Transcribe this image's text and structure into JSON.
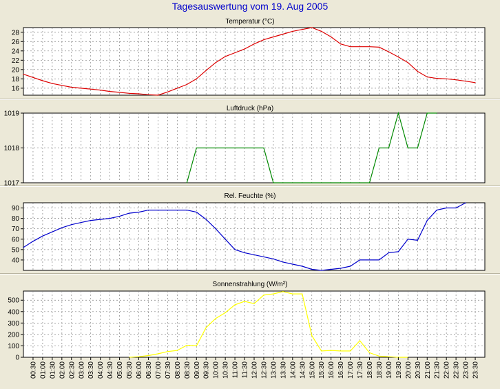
{
  "page": {
    "title": "Tagesauswertung vom 19. Aug 2005",
    "title_color": "#0000cc",
    "background": "#ece9d8",
    "plot_background": "#ffffff"
  },
  "chart_data": [
    {
      "type": "line",
      "title": "Temperatur (°C)",
      "color": "#dd0000",
      "ylim": [
        14.5,
        29
      ],
      "yticks": [
        16,
        18,
        20,
        22,
        24,
        26,
        28
      ],
      "x": [
        0,
        0.5,
        1,
        1.5,
        2,
        2.5,
        3,
        3.5,
        4,
        4.5,
        5,
        5.5,
        6,
        6.5,
        7,
        7.5,
        8,
        8.5,
        9,
        9.5,
        10,
        10.5,
        11,
        11.5,
        12,
        12.5,
        13,
        13.5,
        14,
        14.5,
        15,
        15.5,
        16,
        16.5,
        17,
        17.5,
        18,
        18.5,
        19,
        19.5,
        20,
        20.5,
        21,
        21.5,
        22,
        22.5,
        23,
        23.5
      ],
      "values": [
        19,
        18.3,
        17.6,
        17,
        16.6,
        16.2,
        16,
        15.8,
        15.6,
        15.3,
        15.1,
        14.9,
        14.8,
        14.6,
        14.5,
        15.2,
        16,
        16.8,
        18,
        19.8,
        21.5,
        22.8,
        23.6,
        24.4,
        25.5,
        26.4,
        27,
        27.6,
        28.2,
        28.6,
        29,
        28.2,
        27,
        25.5,
        24.9,
        24.9,
        24.9,
        24.8,
        23.8,
        22.7,
        21.5,
        19.6,
        18.4,
        18.1,
        18,
        17.8,
        17.5,
        17.2
      ]
    },
    {
      "type": "line",
      "title": "Luftdruck (hPa)",
      "color": "#008800",
      "ylim": [
        1017,
        1019
      ],
      "yticks": [
        1017,
        1018,
        1019
      ],
      "x": [
        8.5,
        9,
        9.5,
        10,
        10.5,
        11,
        11.5,
        12,
        12.5,
        13,
        13.5,
        18,
        18.5,
        19,
        19.5,
        20,
        20.5,
        21,
        21.5
      ],
      "values": [
        1017,
        1018,
        1018,
        1018,
        1018,
        1018,
        1018,
        1018,
        1018,
        1017,
        1017,
        1017,
        1018,
        1018,
        1019,
        1018,
        1018,
        1019,
        1019
      ]
    },
    {
      "type": "line",
      "title": "Rel. Feuchte (%)",
      "color": "#0000cc",
      "ylim": [
        30,
        95
      ],
      "yticks": [
        40,
        50,
        60,
        70,
        80,
        90
      ],
      "x": [
        0,
        0.5,
        1,
        1.5,
        2,
        2.5,
        3,
        3.5,
        4,
        4.5,
        5,
        5.5,
        6,
        6.5,
        7,
        7.5,
        8,
        8.5,
        9,
        9.5,
        10,
        10.5,
        11,
        11.5,
        12,
        12.5,
        13,
        13.5,
        14,
        14.5,
        15,
        15.5,
        16,
        16.5,
        17,
        17.5,
        18,
        18.5,
        19,
        19.5,
        20,
        20.5,
        21,
        21.5,
        22,
        22.5,
        23
      ],
      "values": [
        52,
        58,
        63,
        67,
        71,
        74,
        76,
        78,
        79,
        80,
        82,
        85,
        86,
        88,
        88,
        88,
        88,
        88,
        86,
        79,
        70,
        60,
        50,
        47,
        45,
        43,
        41,
        38,
        36,
        34,
        31,
        30,
        31,
        32,
        34,
        40,
        40,
        40,
        47,
        48,
        60,
        59,
        78,
        88,
        90,
        90,
        95
      ]
    },
    {
      "type": "line",
      "title": "Sonnenstrahlung (W/m²)",
      "color": "#ffff00",
      "ylim": [
        0,
        580
      ],
      "yticks": [
        0,
        100,
        200,
        300,
        400,
        500
      ],
      "x": [
        5.5,
        6,
        6.5,
        7,
        7.5,
        8,
        8.5,
        9,
        9.5,
        10,
        10.5,
        11,
        11.5,
        12,
        12.5,
        13,
        13.5,
        14,
        14.5,
        15,
        15.5,
        16,
        16.5,
        17,
        17.5,
        18,
        18.5,
        19,
        19.5,
        20
      ],
      "values": [
        0,
        5,
        15,
        30,
        50,
        60,
        105,
        100,
        260,
        340,
        390,
        460,
        490,
        470,
        545,
        555,
        575,
        555,
        555,
        190,
        55,
        60,
        55,
        55,
        145,
        40,
        10,
        5,
        0,
        0
      ]
    }
  ],
  "x_tick_labels": [
    "00:30",
    "01:00",
    "01:30",
    "02:00",
    "02:30",
    "03:00",
    "03:30",
    "04:00",
    "04:30",
    "05:00",
    "05:30",
    "06:00",
    "06:30",
    "07:00",
    "07:30",
    "08:00",
    "08:30",
    "09:00",
    "09:30",
    "10:00",
    "10:30",
    "11:00",
    "11:30",
    "12:00",
    "12:30",
    "13:00",
    "13:30",
    "14:00",
    "14:30",
    "15:00",
    "15:30",
    "16:00",
    "16:30",
    "17:00",
    "17:30",
    "18:00",
    "18:30",
    "19:00",
    "19:30",
    "20:00",
    "20:30",
    "21:00",
    "21:30",
    "22:00",
    "22:30",
    "23:00",
    "23:30"
  ]
}
